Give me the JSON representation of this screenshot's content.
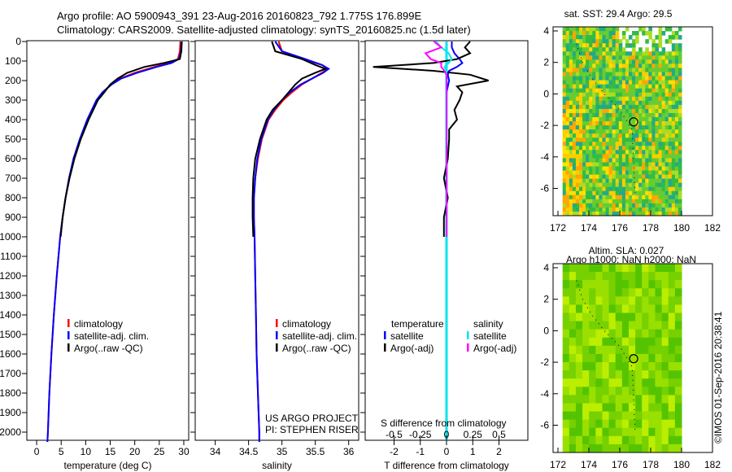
{
  "title": {
    "line1": "Argo profile: AO 5900943_391 23-Aug-2016 20160823_792 1.775S 176.899E",
    "line2": "Climatology: CARS2009. Satellite-adjusted climatology: synTS_20160825.nc (1.5d later)"
  },
  "colors": {
    "climatology": "#ff0000",
    "satellite": "#0000ff",
    "argo": "#000000",
    "sal_satellite": "#00e5ee",
    "sal_argo": "#ff00ff"
  },
  "chart_data": [
    {
      "type": "line",
      "name": "temperature",
      "xlabel": "temperature (deg C)",
      "xlim": [
        -2,
        31
      ],
      "ylim": [
        2050,
        0
      ],
      "xticks": [
        "0",
        "5",
        "10",
        "15",
        "20",
        "25",
        "30"
      ],
      "xtickvals": [
        0,
        5,
        10,
        15,
        20,
        25,
        30
      ],
      "yticks": [
        0,
        100,
        200,
        300,
        400,
        500,
        600,
        700,
        800,
        900,
        1000,
        1100,
        1200,
        1300,
        1400,
        1500,
        1600,
        1700,
        1800,
        1900,
        2000
      ],
      "depth": [
        0,
        50,
        90,
        110,
        130,
        160,
        190,
        220,
        260,
        300,
        400,
        500,
        600,
        700,
        800,
        900,
        1000,
        1200,
        1400,
        1600,
        1800,
        2000,
        2050
      ],
      "series": [
        {
          "name": "climatology",
          "values": [
            29.3,
            29.2,
            28.8,
            27,
            24,
            20,
            17,
            15.2,
            13.5,
            12.3,
            10.4,
            8.9,
            7.6,
            6.6,
            5.9,
            5.3,
            4.8,
            4.1,
            3.5,
            3.0,
            2.6,
            2.3,
            2.2
          ]
        },
        {
          "name": "satellite-adj. clim.",
          "values": [
            29.5,
            29.4,
            29.0,
            27.5,
            24.5,
            20.5,
            17.2,
            15.3,
            13.4,
            12.2,
            10.3,
            8.8,
            7.5,
            6.6,
            5.9,
            5.3,
            4.8,
            4.1,
            3.5,
            3.0,
            2.6,
            2.3,
            2.2
          ]
        },
        {
          "name": "Argo(..raw -QC)",
          "values": [
            29.6,
            29.5,
            29.2,
            26,
            22,
            18.5,
            16.5,
            15,
            13.8,
            12.5,
            10.6,
            9.0,
            7.7,
            6.7,
            5.9,
            5.3,
            4.9,
            null,
            null,
            null,
            null,
            null,
            null
          ]
        }
      ],
      "legend": [
        "climatology",
        "satellite-adj. clim.",
        "Argo(..raw -QC)"
      ]
    },
    {
      "type": "line",
      "name": "salinity",
      "xlabel": "salinity",
      "xlim": [
        33.7,
        36.15
      ],
      "ylim": [
        2050,
        0
      ],
      "xticks": [
        "34",
        "34.5",
        "35",
        "35.5",
        "36"
      ],
      "xtickvals": [
        34,
        34.5,
        35,
        35.5,
        36
      ],
      "depth": [
        0,
        50,
        90,
        120,
        140,
        160,
        190,
        220,
        260,
        300,
        350,
        400,
        500,
        600,
        700,
        800,
        900,
        1000,
        1200,
        1400,
        1600,
        1800,
        2000,
        2050
      ],
      "series": [
        {
          "name": "climatology",
          "values": [
            34.95,
            35.0,
            35.3,
            35.6,
            35.68,
            35.6,
            35.45,
            35.3,
            35.15,
            35.02,
            34.9,
            34.8,
            34.7,
            34.64,
            34.6,
            34.58,
            34.58,
            34.59,
            34.6,
            34.61,
            34.62,
            34.64,
            34.66,
            34.66
          ]
        },
        {
          "name": "satellite-adj. clim.",
          "values": [
            34.9,
            35.0,
            35.35,
            35.6,
            35.7,
            35.62,
            35.45,
            35.28,
            35.12,
            35.0,
            34.88,
            34.79,
            34.69,
            34.63,
            34.6,
            34.58,
            34.58,
            34.59,
            34.6,
            34.61,
            34.62,
            34.64,
            34.66,
            34.66
          ]
        },
        {
          "name": "Argo(..raw -QC)",
          "values": [
            34.85,
            34.9,
            35.3,
            35.5,
            35.65,
            35.5,
            35.3,
            35.2,
            35.1,
            35.0,
            34.86,
            34.77,
            34.67,
            34.6,
            34.57,
            34.56,
            34.56,
            34.57,
            null,
            null,
            null,
            null,
            null,
            null
          ]
        }
      ],
      "legend": [
        "climatology",
        "satellite-adj. clim.",
        "Argo(..raw -QC)"
      ],
      "annotation": [
        "US ARGO PROJECT",
        "PI: STEPHEN RISER"
      ]
    },
    {
      "type": "line",
      "name": "difference",
      "xlabel": "T difference from climatology",
      "x2label": "S difference from climatology",
      "xlim": [
        -3.1,
        3.1
      ],
      "xticks": [
        "-2",
        "-1",
        "0",
        "1",
        "2"
      ],
      "xtickvals": [
        -2,
        -1,
        0,
        1,
        2
      ],
      "x2ticks": [
        "-0.5",
        "-0.25",
        "0",
        "0.25",
        "0.5"
      ],
      "x2tickvals": [
        -0.5,
        -0.25,
        0,
        0.25,
        0.5
      ],
      "depth": [
        0,
        30,
        60,
        90,
        110,
        130,
        150,
        170,
        200,
        230,
        260,
        300,
        350,
        400,
        450,
        500,
        600,
        700,
        800,
        900,
        1000
      ],
      "series": [
        {
          "name": "T satellite",
          "values": [
            0.2,
            0.2,
            0.3,
            0.5,
            0.6,
            0.4,
            0.1,
            0.05,
            0.1,
            0.05,
            0,
            0,
            0,
            0,
            0,
            0,
            0,
            0,
            0,
            0,
            0
          ]
        },
        {
          "name": "T Argo(-adj)",
          "values": [
            0.9,
            0.7,
            0.9,
            0.4,
            -0.5,
            -2.8,
            -0.5,
            0.9,
            1.6,
            0.4,
            0.6,
            0.5,
            0.3,
            0.4,
            0.1,
            0.1,
            0.05,
            -0.1,
            0.05,
            -0.1,
            -0.1
          ]
        },
        {
          "name": "S satellite",
          "values": [
            -0.1,
            -0.05,
            0.02,
            0.05,
            0.02,
            -0.02,
            0,
            0,
            0,
            0,
            0,
            0,
            0,
            0,
            0,
            0,
            0,
            0,
            0,
            0,
            0
          ]
        },
        {
          "name": "S Argo(-adj)",
          "values": [
            -0.12,
            -0.05,
            -0.2,
            -0.15,
            -0.05,
            -0.05,
            -0.02,
            0,
            0,
            0,
            0,
            0,
            0,
            0,
            0,
            0,
            0,
            0,
            0,
            0,
            0
          ]
        }
      ],
      "legend": {
        "temperature": "temperature",
        "salinity": "salinity",
        "items": [
          "satellite",
          "Argo(-adj)",
          "satellite",
          "Argo(-adj)"
        ]
      }
    },
    {
      "type": "heatmap",
      "name": "sst-map",
      "title": "sat. SST: 29.4 Argo: 29.5",
      "xticks": [
        "172",
        "174",
        "176",
        "178",
        "180",
        "182"
      ],
      "yticks": [
        "4",
        "2",
        "0",
        "-2",
        "-4",
        "-6"
      ],
      "argo_position": [
        176.899,
        -1.775
      ]
    },
    {
      "type": "heatmap",
      "name": "sla-map",
      "title": "Altim. SLA: 0.027",
      "subtitle": "Argo h1000: NaN h2000: NaN",
      "xticks": [
        "172",
        "174",
        "176",
        "178",
        "180",
        "182"
      ],
      "yticks": [
        "4",
        "2",
        "0",
        "-2",
        "-4",
        "-6"
      ],
      "argo_position": [
        176.899,
        -1.775
      ]
    }
  ],
  "credit": "©IMOS 01-Sep-2016 20:38:41"
}
